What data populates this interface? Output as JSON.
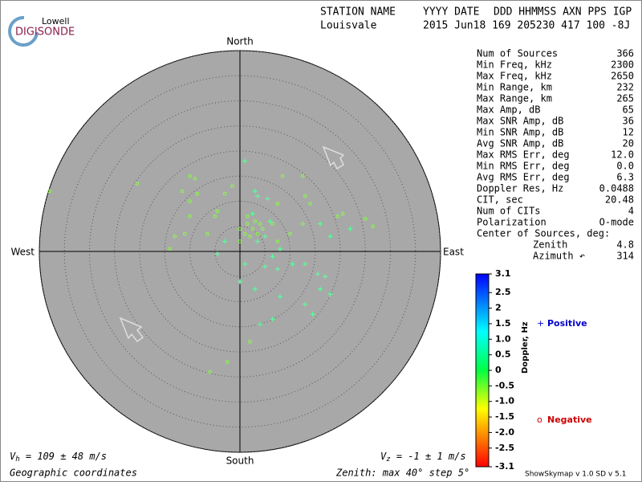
{
  "logo": {
    "top": "Lowell",
    "bottom": "DIGISONDE"
  },
  "header": {
    "labels": [
      "STATION NAME",
      "YYYY DATE",
      "DDD HHMMSS AXN PPS IGP"
    ],
    "station": "Louisvale",
    "values": "2015 Jun18 169 205230 417 100 -8J"
  },
  "stats": [
    [
      "Num of Sources",
      "366"
    ],
    [
      "Min Freq, kHz",
      "2300"
    ],
    [
      "Max Freq, kHz",
      "2650"
    ],
    [
      "Min Range, km",
      "232"
    ],
    [
      "Max Range, km",
      "265"
    ],
    [
      "Max Amp, dB",
      "65"
    ],
    [
      "Max SNR Amp, dB",
      "36"
    ],
    [
      "Min SNR Amp, dB",
      "12"
    ],
    [
      "Avg SNR Amp, dB",
      "20"
    ],
    [
      "Max RMS Err, deg",
      "12.0"
    ],
    [
      "Min RMS Err, deg",
      "0.0"
    ],
    [
      "Avg RMS Err, deg",
      "6.3"
    ],
    [
      "Doppler Res, Hz",
      "0.0488"
    ],
    [
      "CIT, sec",
      "20.48"
    ],
    [
      "Num of CITs",
      "4"
    ],
    [
      "Polarization",
      "O-mode"
    ]
  ],
  "center": {
    "title": "Center of Sources, deg:",
    "rows": [
      [
        "Zenith",
        "4.8"
      ],
      [
        "Azimuth ↶",
        "314"
      ]
    ]
  },
  "directions": {
    "north": "North",
    "south": "South",
    "west": "West",
    "east": "East"
  },
  "footer": {
    "vh": [
      "V",
      "h",
      " = 109 ± 48 m/s"
    ],
    "vz": [
      "V",
      "z",
      " = -1 ± 1 m/s"
    ],
    "coords": "Geographic coordinates",
    "zenith": "Zenith: max 40°  step 5°",
    "version": "ShowSkymap v 1.0  SD v 5.1"
  },
  "chart_data": {
    "type": "polar-scatter",
    "xlim": [
      -40,
      40
    ],
    "ylim": [
      -40,
      40
    ],
    "rticks": [
      5,
      10,
      15,
      20,
      25,
      30,
      35,
      40
    ],
    "series": [
      {
        "name": "Positive",
        "marker": "+",
        "color": "#55ff99",
        "legend_color": "#0000cc",
        "x": [
          1,
          3,
          3.5,
          5.5,
          0,
          3,
          5,
          7.5,
          10.5,
          13,
          15.5,
          17,
          16,
          18,
          13,
          14.5,
          8,
          6.5,
          4,
          16,
          18,
          22,
          -4.5,
          -3,
          1,
          6.5,
          8,
          3.5,
          5,
          2.5,
          6
        ],
        "values": [
          18,
          12,
          11,
          10.5,
          -6,
          -7.5,
          -3,
          -3.5,
          -2.5,
          -2.5,
          -4.5,
          -5,
          -7.5,
          -8.5,
          -10.5,
          -12.5,
          -9,
          -13.5,
          -14.5,
          5.5,
          3,
          4.5,
          -0.5,
          2,
          -2.5,
          -1,
          0.5,
          2,
          3,
          7.5,
          6
        ]
      },
      {
        "name": "Negative",
        "marker": "o",
        "color": "#88ff44",
        "legend_color": "#cc0000",
        "x": [
          -10,
          -9,
          -20.5,
          -11.5,
          -10,
          -8.5,
          -10,
          -13,
          -11,
          -14,
          -4.5,
          -5,
          -3,
          12.5,
          13,
          8.5,
          7.5,
          12.5,
          19.5,
          20.5,
          25,
          26.5,
          -1.5,
          7.5,
          -2.5,
          -6,
          2,
          -38,
          14,
          6.5,
          10,
          -6.5,
          0,
          1.5,
          2.5,
          3.5,
          4,
          1,
          3,
          2,
          4.5,
          0,
          1.5
        ],
        "values": [
          15,
          14.5,
          13.5,
          12,
          10,
          11.5,
          7,
          3,
          3.5,
          0.5,
          8,
          7,
          11.5,
          15,
          11,
          15,
          9.5,
          5.5,
          7,
          7.5,
          6.5,
          5,
          13,
          2,
          -22,
          -24,
          -18,
          12,
          9.5,
          5.5,
          3.5,
          3.5,
          2,
          5.5,
          4.5,
          3.5,
          5.5,
          3.5,
          6,
          3,
          4.5,
          4.5,
          7
        ]
      }
    ]
  },
  "colorbar": {
    "label": "Doppler, Hz",
    "clim": [
      -3.1,
      3.1
    ],
    "ticks": [
      3.1,
      2.5,
      2,
      1.5,
      {
        "value": 1,
        "label": "1.0"
      },
      0.5,
      0,
      -0.5,
      {
        "value": -1,
        "label": "-1.0"
      },
      -1.5,
      {
        "value": -2,
        "label": "-2.0"
      },
      -2.5,
      -3.1
    ]
  }
}
